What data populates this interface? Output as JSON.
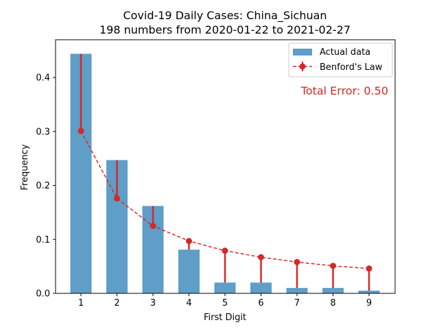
{
  "chart_data": {
    "type": "bar",
    "title": "Covid-19 Daily Cases: China_Sichuan",
    "subtitle": "198 numbers from 2020-01-22 to 2021-02-27",
    "xlabel": "First Digit",
    "ylabel": "Frequency",
    "categories": [
      "1",
      "2",
      "3",
      "4",
      "5",
      "6",
      "7",
      "8",
      "9"
    ],
    "ylim": [
      0,
      0.47
    ],
    "yticks": [
      0.0,
      0.1,
      0.2,
      0.3,
      0.4
    ],
    "ytick_labels": [
      "0.0",
      "0.1",
      "0.2",
      "0.3",
      "0.4"
    ],
    "series": [
      {
        "name": "Actual data",
        "kind": "bar",
        "color": "#5f9ec7",
        "values": [
          0.444,
          0.247,
          0.162,
          0.081,
          0.02,
          0.02,
          0.01,
          0.01,
          0.005
        ]
      },
      {
        "name": "Benford's Law",
        "kind": "line",
        "color": "#d62728",
        "linestyle": "dashed",
        "marker": "circle",
        "values": [
          0.301,
          0.176,
          0.125,
          0.097,
          0.079,
          0.067,
          0.058,
          0.051,
          0.046
        ]
      }
    ],
    "annotation": "Total Error: 0.50",
    "annotation_color": "#d62728",
    "legend_position": "top-right",
    "grid": false
  }
}
